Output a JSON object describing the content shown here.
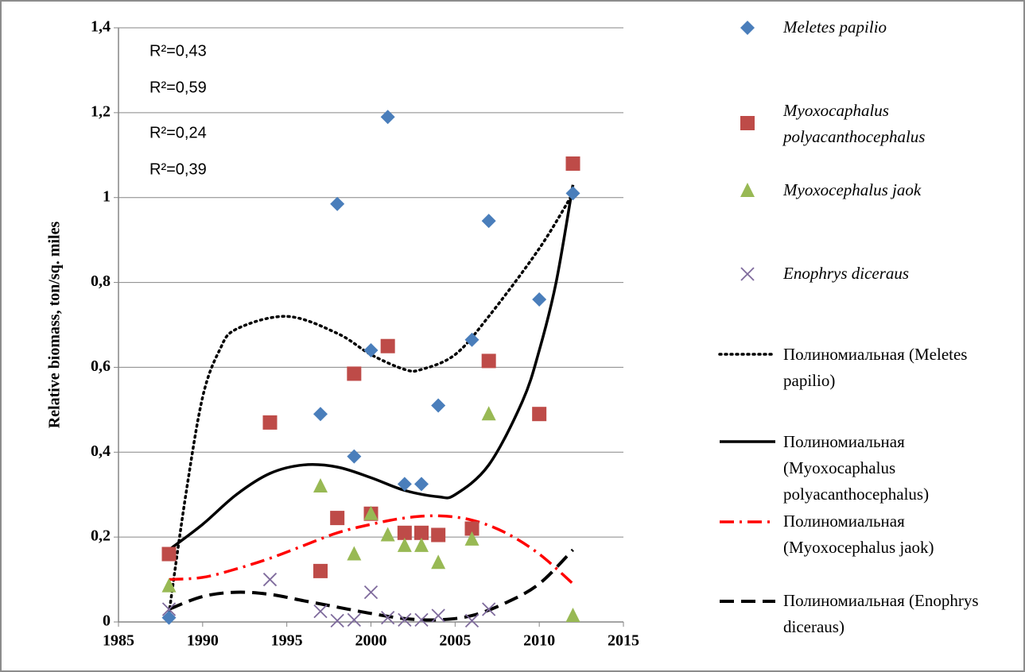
{
  "chart_data": {
    "type": "scatter",
    "y_label": "Relative biomass, ton/sq. miles",
    "xlim": [
      1985,
      2015
    ],
    "xticks": [
      1985,
      1990,
      1995,
      2000,
      2005,
      2010,
      2015
    ],
    "ylim": [
      0,
      1.4
    ],
    "yticks": [
      {
        "value": 0,
        "label": "0"
      },
      {
        "value": 0.2,
        "label": "0,2"
      },
      {
        "value": 0.4,
        "label": "0,4"
      },
      {
        "value": 0.6,
        "label": "0,6"
      },
      {
        "value": 0.8,
        "label": "0,8"
      },
      {
        "value": 1,
        "label": "1"
      },
      {
        "value": 1.2,
        "label": "1,2"
      },
      {
        "value": 1.4,
        "label": "1,4"
      }
    ],
    "grid": true,
    "legend": "right",
    "annotations": [
      "R²=0,43",
      "R²=0,59",
      "R²=0,24",
      "R²=0,39"
    ],
    "series": [
      {
        "name": "Meletes papilio",
        "color": "#4a7ebb",
        "marker": "diamond",
        "x": [
          1988,
          1997,
          1998,
          1999,
          2000,
          2001,
          2002,
          2003,
          2004,
          2006,
          2007,
          2010,
          2012
        ],
        "values": [
          0.01,
          0.49,
          0.985,
          0.39,
          0.64,
          1.19,
          0.325,
          0.325,
          0.51,
          0.665,
          0.945,
          0.76,
          1.01
        ]
      },
      {
        "name": "Myoxocaphalus polyacanthocephalus",
        "color": "#be4b48",
        "marker": "square",
        "x": [
          1988,
          1994,
          1997,
          1998,
          1999,
          2000,
          2001,
          2002,
          2003,
          2004,
          2006,
          2007,
          2010,
          2012
        ],
        "values": [
          0.16,
          0.47,
          0.12,
          0.245,
          0.585,
          0.255,
          0.65,
          0.21,
          0.21,
          0.205,
          0.22,
          0.615,
          0.49,
          1.08
        ]
      },
      {
        "name": "Myoxocephalus jaok",
        "color": "#98b954",
        "marker": "triangle",
        "x": [
          1988,
          1997,
          1999,
          2000,
          2001,
          2002,
          2003,
          2004,
          2006,
          2007,
          2012
        ],
        "values": [
          0.085,
          0.32,
          0.16,
          0.255,
          0.205,
          0.18,
          0.18,
          0.14,
          0.195,
          0.49,
          0.015
        ]
      },
      {
        "name": "Enophrys diceraus",
        "color": "#7e6a9c",
        "marker": "x",
        "x": [
          1988,
          1994,
          1997,
          1998,
          1999,
          2000,
          2001,
          2002,
          2003,
          2004,
          2006,
          2007
        ],
        "values": [
          0.03,
          0.1,
          0.025,
          0.003,
          0.005,
          0.07,
          0.01,
          0.005,
          0.005,
          0.015,
          0.003,
          0.03
        ]
      }
    ],
    "trendlines": [
      {
        "name": "Полиномиальная (Meletes papilio)",
        "color": "#000000",
        "style": "dotted",
        "x": [
          1988,
          1989,
          1990,
          1991,
          1992,
          1995,
          1998,
          2000,
          2002,
          2003,
          2005,
          2007,
          2010,
          2012
        ],
        "values": [
          0.02,
          0.3,
          0.53,
          0.64,
          0.69,
          0.72,
          0.68,
          0.63,
          0.595,
          0.595,
          0.63,
          0.72,
          0.88,
          1.01
        ]
      },
      {
        "name": "Полиномиальная (Myoxocaphalus polyacanthocephalus)",
        "color": "#000000",
        "style": "solid",
        "x": [
          1988,
          1990,
          1992,
          1994,
          1996,
          1998,
          2000,
          2002,
          2004,
          2005,
          2007,
          2009,
          2010,
          2011,
          2012
        ],
        "values": [
          0.17,
          0.23,
          0.3,
          0.35,
          0.37,
          0.365,
          0.34,
          0.31,
          0.295,
          0.3,
          0.37,
          0.52,
          0.64,
          0.8,
          1.03
        ]
      },
      {
        "name": "Полиномиальная (Myoxocephalus jaok)",
        "color": "#ff0000",
        "style": "dash-dot",
        "x": [
          1988,
          1990,
          1992,
          1994,
          1996,
          1998,
          2000,
          2002,
          2004,
          2006,
          2008,
          2010,
          2012
        ],
        "values": [
          0.1,
          0.105,
          0.125,
          0.15,
          0.18,
          0.21,
          0.23,
          0.245,
          0.25,
          0.24,
          0.21,
          0.16,
          0.09
        ]
      },
      {
        "name": "Полиномиальная (Enophrys diceraus)",
        "color": "#000000",
        "style": "dashed",
        "x": [
          1988,
          1990,
          1992,
          1994,
          1996,
          1998,
          2000,
          2002,
          2004,
          2006,
          2008,
          2010,
          2012
        ],
        "values": [
          0.03,
          0.06,
          0.07,
          0.065,
          0.05,
          0.035,
          0.02,
          0.008,
          0.005,
          0.015,
          0.045,
          0.09,
          0.17
        ]
      }
    ]
  }
}
